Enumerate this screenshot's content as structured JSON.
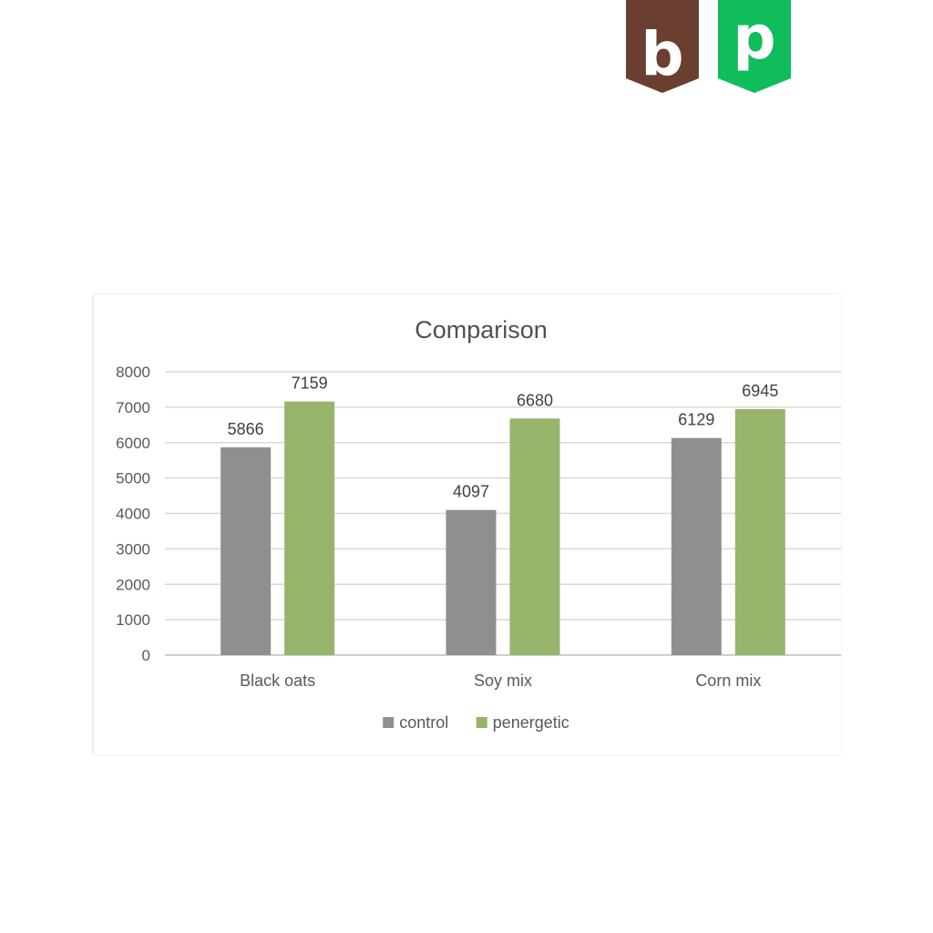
{
  "branding": {
    "badges": [
      {
        "letter": "b",
        "color": "#6a3f30"
      },
      {
        "letter": "p",
        "color": "#0fbd5b"
      }
    ]
  },
  "colors": {
    "gridline": "#d9d9d9",
    "axis_line": "#bfbfbf"
  },
  "chart_data": {
    "type": "bar",
    "title": "Comparison",
    "xlabel": "",
    "ylabel": "",
    "categories": [
      "Black oats",
      "Soy mix",
      "Corn mix"
    ],
    "series": [
      {
        "name": "control",
        "color": "#8f8f8f",
        "values": [
          5866,
          4097,
          6129
        ]
      },
      {
        "name": "penergetic",
        "color": "#96b56b",
        "values": [
          7159,
          6680,
          6945
        ]
      }
    ],
    "ylim": [
      0,
      8000
    ],
    "yticks": [
      0,
      1000,
      2000,
      3000,
      4000,
      5000,
      6000,
      7000,
      8000
    ],
    "grid": true,
    "data_labels": true,
    "legend": "bottom"
  }
}
